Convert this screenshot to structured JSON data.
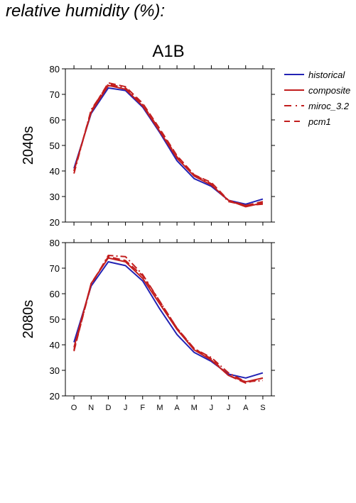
{
  "title": "relative humidity (%):",
  "chart_data": {
    "type": "line",
    "scenario": "A1B",
    "months": [
      "O",
      "N",
      "D",
      "J",
      "F",
      "M",
      "A",
      "M",
      "J",
      "J",
      "A",
      "S"
    ],
    "ylim": [
      20,
      80
    ],
    "yticks": [
      20,
      30,
      40,
      50,
      60,
      70,
      80
    ],
    "legend": [
      {
        "name": "historical",
        "color": "#2323b4",
        "dash": "solid"
      },
      {
        "name": "composite",
        "color": "#c21e1e",
        "dash": "solid"
      },
      {
        "name": "miroc_3.2",
        "color": "#c21e1e",
        "dash": "dashdot"
      },
      {
        "name": "pcm1",
        "color": "#c21e1e",
        "dash": "dash"
      }
    ],
    "panels": [
      {
        "label": "2040s",
        "series": [
          {
            "name": "historical",
            "values": [
              41,
              62.5,
              72.5,
              71.5,
              65,
              55,
              44,
              37,
              34,
              28.5,
              27,
              29
            ]
          },
          {
            "name": "composite",
            "values": [
              40,
              63,
              73.5,
              72,
              65.5,
              55.5,
              45,
              38,
              34.5,
              28.5,
              26,
              27.5
            ]
          },
          {
            "name": "miroc_3.2",
            "values": [
              39,
              64,
              74,
              72.5,
              66,
              56,
              45.5,
              38.5,
              35,
              28,
              26.5,
              27
            ]
          },
          {
            "name": "pcm1",
            "values": [
              40,
              63.5,
              74.5,
              73,
              66.5,
              56.5,
              46,
              38.5,
              35.5,
              28.5,
              26.5,
              28
            ]
          }
        ]
      },
      {
        "label": "2080s",
        "series": [
          {
            "name": "historical",
            "values": [
              41,
              63,
              72.5,
              71,
              65,
              54,
              44,
              37,
              33.5,
              28.5,
              27,
              29
            ]
          },
          {
            "name": "composite",
            "values": [
              39,
              64,
              74,
              72.5,
              66,
              56,
              46,
              38,
              34,
              28,
              25.5,
              27
            ]
          },
          {
            "name": "miroc_3.2",
            "values": [
              38,
              63.5,
              75,
              74.5,
              67.5,
              57,
              46.5,
              38.5,
              35,
              29,
              25.5,
              26
            ]
          },
          {
            "name": "pcm1",
            "values": [
              37.5,
              64,
              74.5,
              73,
              67,
              57,
              46.5,
              38.5,
              34.5,
              28,
              25,
              27
            ]
          }
        ]
      }
    ]
  }
}
